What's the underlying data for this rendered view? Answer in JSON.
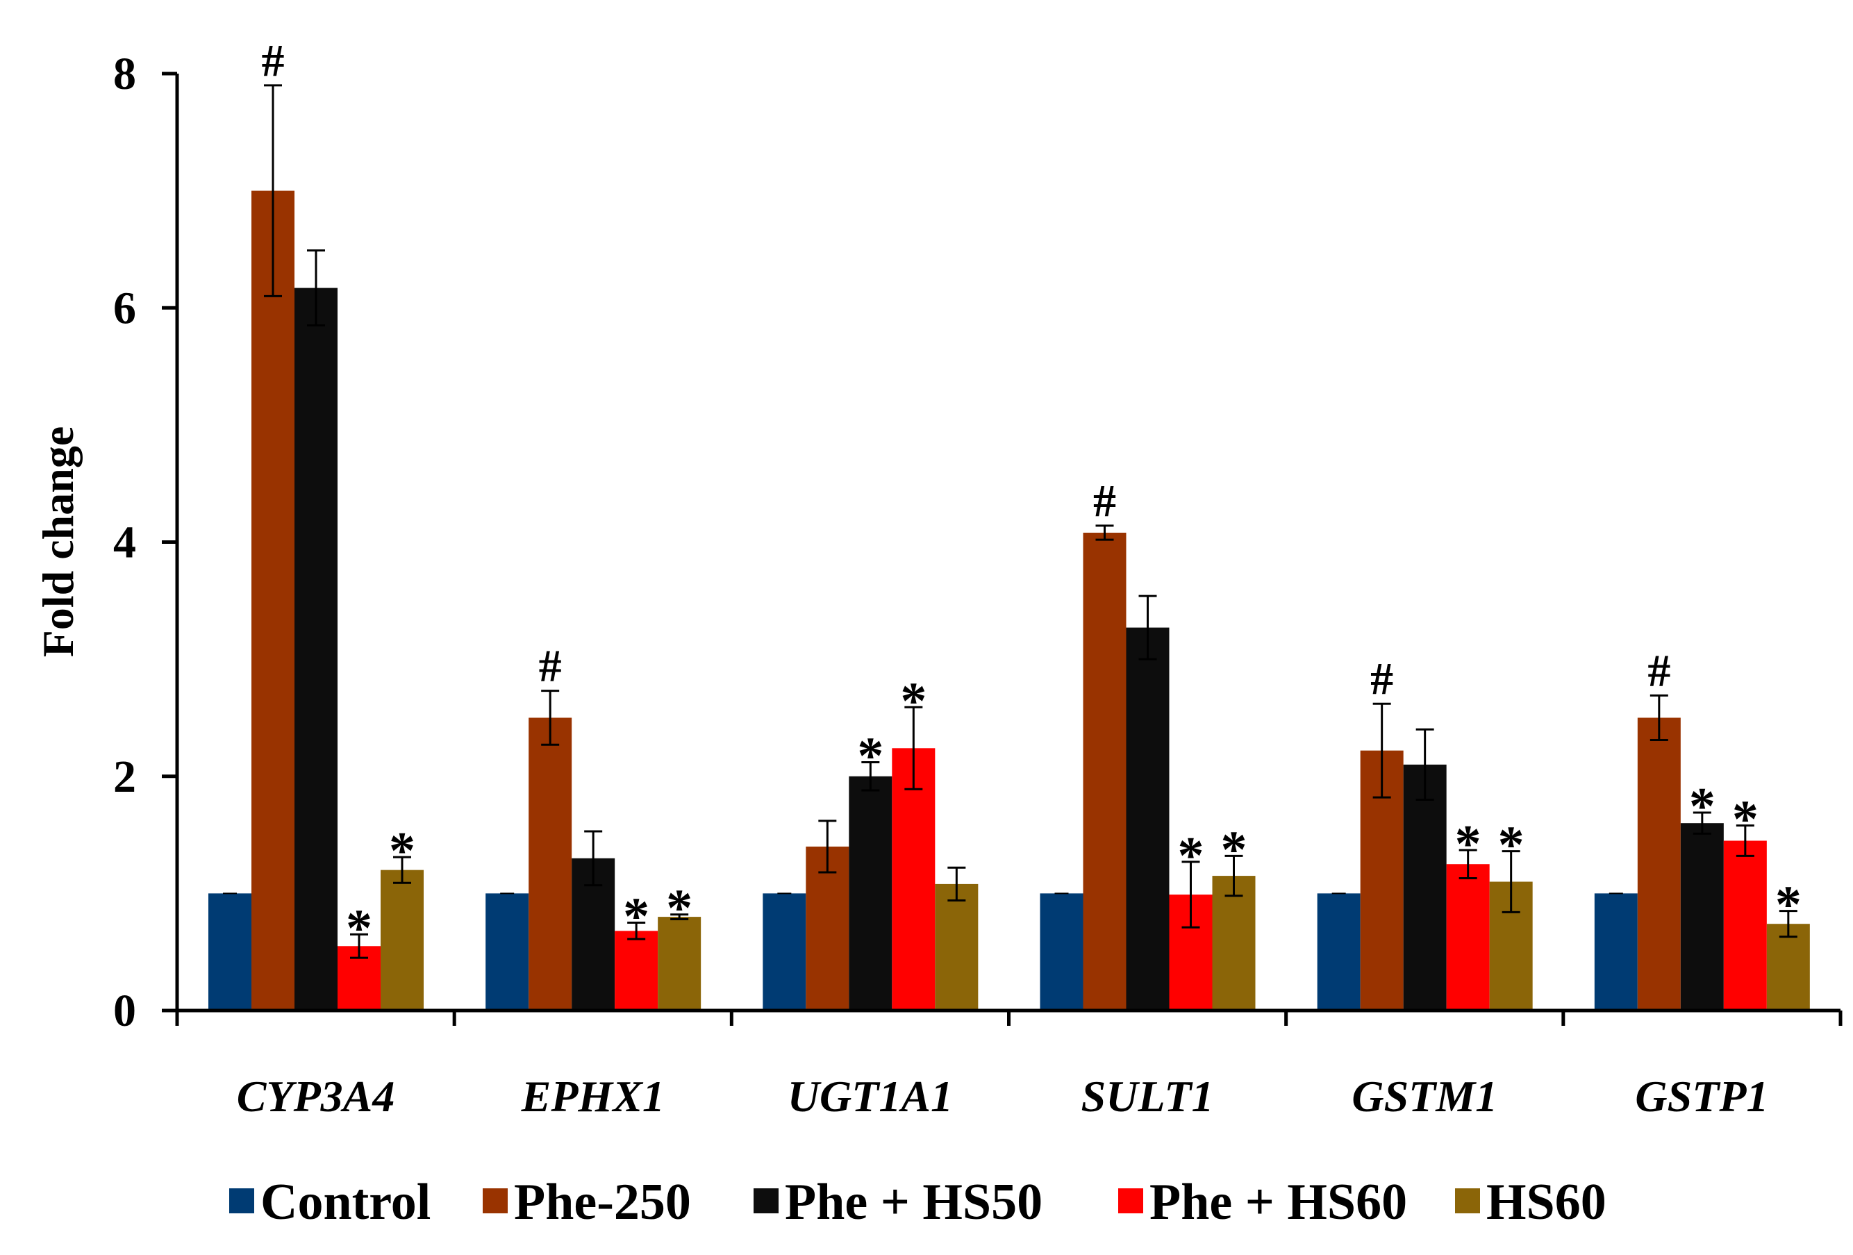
{
  "chart_data": {
    "type": "bar",
    "title": "",
    "xlabel": "",
    "ylabel": "Fold change",
    "ylim": [
      0,
      8
    ],
    "yticks": [
      "0",
      "2",
      "4",
      "6",
      "8"
    ],
    "categories": [
      "CYP3A4",
      "EPHX1",
      "UGT1A1",
      "SULT1",
      "GSTM1",
      "GSTP1"
    ],
    "series": [
      {
        "name": "Control",
        "color": "#003b73",
        "values": [
          1.0,
          1.0,
          1.0,
          1.0,
          1.0,
          1.0
        ],
        "errors": [
          0.0,
          0.0,
          0.0,
          0.0,
          0.0,
          0.0
        ],
        "annotations": [
          "",
          "",
          "",
          "",
          "",
          ""
        ]
      },
      {
        "name": "Phe-250",
        "color": "#993300",
        "values": [
          7.0,
          2.5,
          1.4,
          4.08,
          2.22,
          2.5
        ],
        "errors": [
          0.9,
          0.23,
          0.22,
          0.06,
          0.4,
          0.19
        ],
        "annotations": [
          "#",
          "#",
          "",
          "#",
          "#",
          "#"
        ]
      },
      {
        "name": "Phe + HS50",
        "color": "#0d0d0d",
        "values": [
          6.17,
          1.3,
          2.0,
          3.27,
          2.1,
          1.6
        ],
        "errors": [
          0.32,
          0.23,
          0.12,
          0.27,
          0.3,
          0.09
        ],
        "annotations": [
          "",
          "",
          "*",
          "",
          "",
          "*"
        ]
      },
      {
        "name": "Phe + HS60",
        "color": "#ff0000",
        "values": [
          0.55,
          0.68,
          2.24,
          0.99,
          1.25,
          1.45
        ],
        "errors": [
          0.1,
          0.07,
          0.35,
          0.28,
          0.12,
          0.13
        ],
        "annotations": [
          "*",
          "*",
          "*",
          "*",
          "*",
          "*"
        ]
      },
      {
        "name": "HS60",
        "color": "#8b6508",
        "values": [
          1.2,
          0.8,
          1.08,
          1.15,
          1.1,
          0.74
        ],
        "errors": [
          0.11,
          0.02,
          0.14,
          0.17,
          0.26,
          0.11
        ],
        "annotations": [
          "*",
          "*",
          "",
          "*",
          "*",
          "*"
        ]
      }
    ],
    "legend_position": "bottom"
  }
}
